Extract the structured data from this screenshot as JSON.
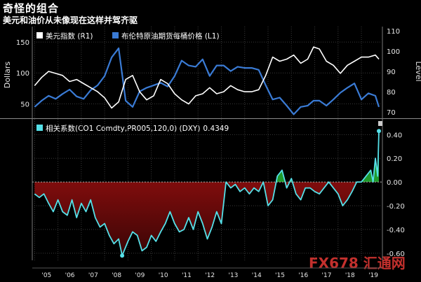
{
  "title": "奇怪的组合",
  "subtitle": "美元和油价从未像现在这样并驾齐驱",
  "watermark": "FX678 汇通网",
  "colors": {
    "dxy": "#ffffff",
    "oil": "#3a7bd5",
    "corr": "#55e0e8",
    "neg_fill": "#9b1010",
    "pos_fill": "#1f9a2c",
    "grid": "#3a3a3a",
    "background": "#000000"
  },
  "chart_data": [
    {
      "type": "line",
      "legend_position": "top-left",
      "left_axis_label": "Dollars",
      "right_axis_label": "Level",
      "left_ylim": [
        30,
        175
      ],
      "right_ylim": [
        68,
        112
      ],
      "left_ticks": [
        "50",
        "100",
        "150"
      ],
      "left_tick_values": [
        50,
        100,
        150
      ],
      "right_ticks": [
        "70",
        "80",
        "90",
        "100",
        "110"
      ],
      "right_tick_values": [
        70,
        80,
        90,
        100,
        110
      ],
      "series": [
        {
          "name": "美元指数 (R1)",
          "axis": "right",
          "x": [
            2005.0,
            2005.3,
            2005.6,
            2005.9,
            2006.2,
            2006.5,
            2006.8,
            2007.1,
            2007.4,
            2007.7,
            2008.0,
            2008.3,
            2008.6,
            2008.9,
            2009.2,
            2009.5,
            2009.8,
            2010.1,
            2010.4,
            2010.7,
            2011.0,
            2011.3,
            2011.6,
            2011.9,
            2012.2,
            2012.5,
            2012.8,
            2013.1,
            2013.4,
            2013.7,
            2014.0,
            2014.3,
            2014.6,
            2014.9,
            2015.2,
            2015.5,
            2015.8,
            2016.1,
            2016.4,
            2016.7,
            2016.95,
            2017.2,
            2017.5,
            2017.8,
            2018.1,
            2018.4,
            2018.7,
            2019.0,
            2019.3,
            2019.6,
            2019.75
          ],
          "values": [
            83,
            87,
            90,
            89,
            88,
            85,
            86,
            84,
            82,
            80,
            77,
            72,
            75,
            86,
            88,
            80,
            76,
            78,
            86,
            84,
            79,
            76,
            74,
            78,
            79,
            82,
            79,
            80,
            83,
            81,
            80,
            80,
            81,
            88,
            97,
            95,
            96,
            98,
            94,
            96,
            102,
            101,
            95,
            93,
            89,
            93,
            95,
            97,
            97,
            98,
            96
          ]
        },
        {
          "name": "布伦特原油期货每桶价格 (L1)",
          "axis": "left",
          "x": [
            2005.0,
            2005.3,
            2005.6,
            2005.9,
            2006.2,
            2006.5,
            2006.8,
            2007.1,
            2007.4,
            2007.7,
            2008.0,
            2008.3,
            2008.6,
            2008.9,
            2009.2,
            2009.5,
            2009.8,
            2010.1,
            2010.4,
            2010.7,
            2011.0,
            2011.3,
            2011.6,
            2011.9,
            2012.2,
            2012.5,
            2012.8,
            2013.1,
            2013.4,
            2013.7,
            2014.0,
            2014.3,
            2014.6,
            2014.9,
            2015.2,
            2015.5,
            2015.8,
            2016.1,
            2016.4,
            2016.7,
            2016.95,
            2017.2,
            2017.5,
            2017.8,
            2018.1,
            2018.4,
            2018.7,
            2019.0,
            2019.3,
            2019.6,
            2019.75
          ],
          "values": [
            45,
            55,
            63,
            58,
            66,
            73,
            62,
            58,
            72,
            80,
            95,
            125,
            140,
            55,
            45,
            70,
            76,
            80,
            84,
            78,
            95,
            120,
            112,
            110,
            122,
            95,
            112,
            112,
            103,
            110,
            108,
            108,
            105,
            80,
            57,
            60,
            47,
            33,
            45,
            47,
            55,
            55,
            47,
            57,
            68,
            76,
            83,
            57,
            67,
            63,
            45
          ]
        }
      ]
    },
    {
      "type": "area",
      "legend_position": "top-left",
      "ylim": [
        -0.66,
        0.52
      ],
      "ticks": [
        "0.40",
        "0.20",
        "0.00",
        "-0.20",
        "-0.40",
        "-0.60"
      ],
      "tick_values": [
        0.4,
        0.2,
        0.0,
        -0.2,
        -0.4,
        -0.6
      ],
      "x_tick_labels": [
        "'05",
        "'06",
        "'07",
        "'08",
        "'09",
        "'10",
        "'11",
        "'12",
        "'13",
        "'14",
        "'15",
        "'16",
        "'17",
        "'18",
        "'19"
      ],
      "x_tick_years": [
        2005,
        2006,
        2007,
        2008,
        2009,
        2010,
        2011,
        2012,
        2013,
        2014,
        2015,
        2016,
        2017,
        2018,
        2019
      ],
      "last_value_label": "0.4349",
      "series": [
        {
          "name": "相关系数(CO1 Comdty,PR005,120,0) (DXY)",
          "x": [
            2005.0,
            2005.2,
            2005.4,
            2005.6,
            2005.8,
            2006.0,
            2006.2,
            2006.4,
            2006.6,
            2006.8,
            2007.0,
            2007.2,
            2007.4,
            2007.6,
            2007.8,
            2008.0,
            2008.2,
            2008.4,
            2008.6,
            2008.75,
            2009.0,
            2009.2,
            2009.4,
            2009.6,
            2009.8,
            2010.0,
            2010.2,
            2010.4,
            2010.6,
            2010.8,
            2011.0,
            2011.2,
            2011.4,
            2011.6,
            2011.8,
            2012.0,
            2012.2,
            2012.4,
            2012.6,
            2012.8,
            2013.0,
            2013.2,
            2013.4,
            2013.6,
            2013.8,
            2014.0,
            2014.2,
            2014.4,
            2014.6,
            2014.8,
            2015.0,
            2015.2,
            2015.4,
            2015.6,
            2015.8,
            2016.0,
            2016.2,
            2016.4,
            2016.6,
            2016.8,
            2017.0,
            2017.2,
            2017.4,
            2017.6,
            2017.8,
            2018.0,
            2018.2,
            2018.4,
            2018.6,
            2018.8,
            2019.0,
            2019.2,
            2019.4,
            2019.5,
            2019.6,
            2019.7,
            2019.75
          ],
          "values": [
            -0.1,
            -0.13,
            -0.1,
            -0.18,
            -0.25,
            -0.15,
            -0.25,
            -0.28,
            -0.15,
            -0.3,
            -0.18,
            -0.25,
            -0.15,
            -0.3,
            -0.38,
            -0.35,
            -0.45,
            -0.52,
            -0.48,
            -0.62,
            -0.5,
            -0.42,
            -0.45,
            -0.58,
            -0.55,
            -0.45,
            -0.5,
            -0.42,
            -0.35,
            -0.25,
            -0.35,
            -0.42,
            -0.4,
            -0.3,
            -0.4,
            -0.25,
            -0.35,
            -0.48,
            -0.38,
            -0.25,
            -0.35,
            0.0,
            -0.05,
            -0.02,
            -0.08,
            -0.05,
            -0.1,
            -0.05,
            -0.08,
            0.0,
            -0.2,
            -0.15,
            0.05,
            0.1,
            -0.05,
            0.03,
            -0.1,
            -0.15,
            -0.05,
            -0.05,
            -0.08,
            -0.1,
            -0.05,
            0.0,
            -0.05,
            -0.1,
            -0.2,
            -0.15,
            -0.08,
            0.0,
            0.0,
            0.05,
            0.1,
            0.0,
            0.2,
            0.05,
            0.43
          ]
        }
      ]
    }
  ]
}
